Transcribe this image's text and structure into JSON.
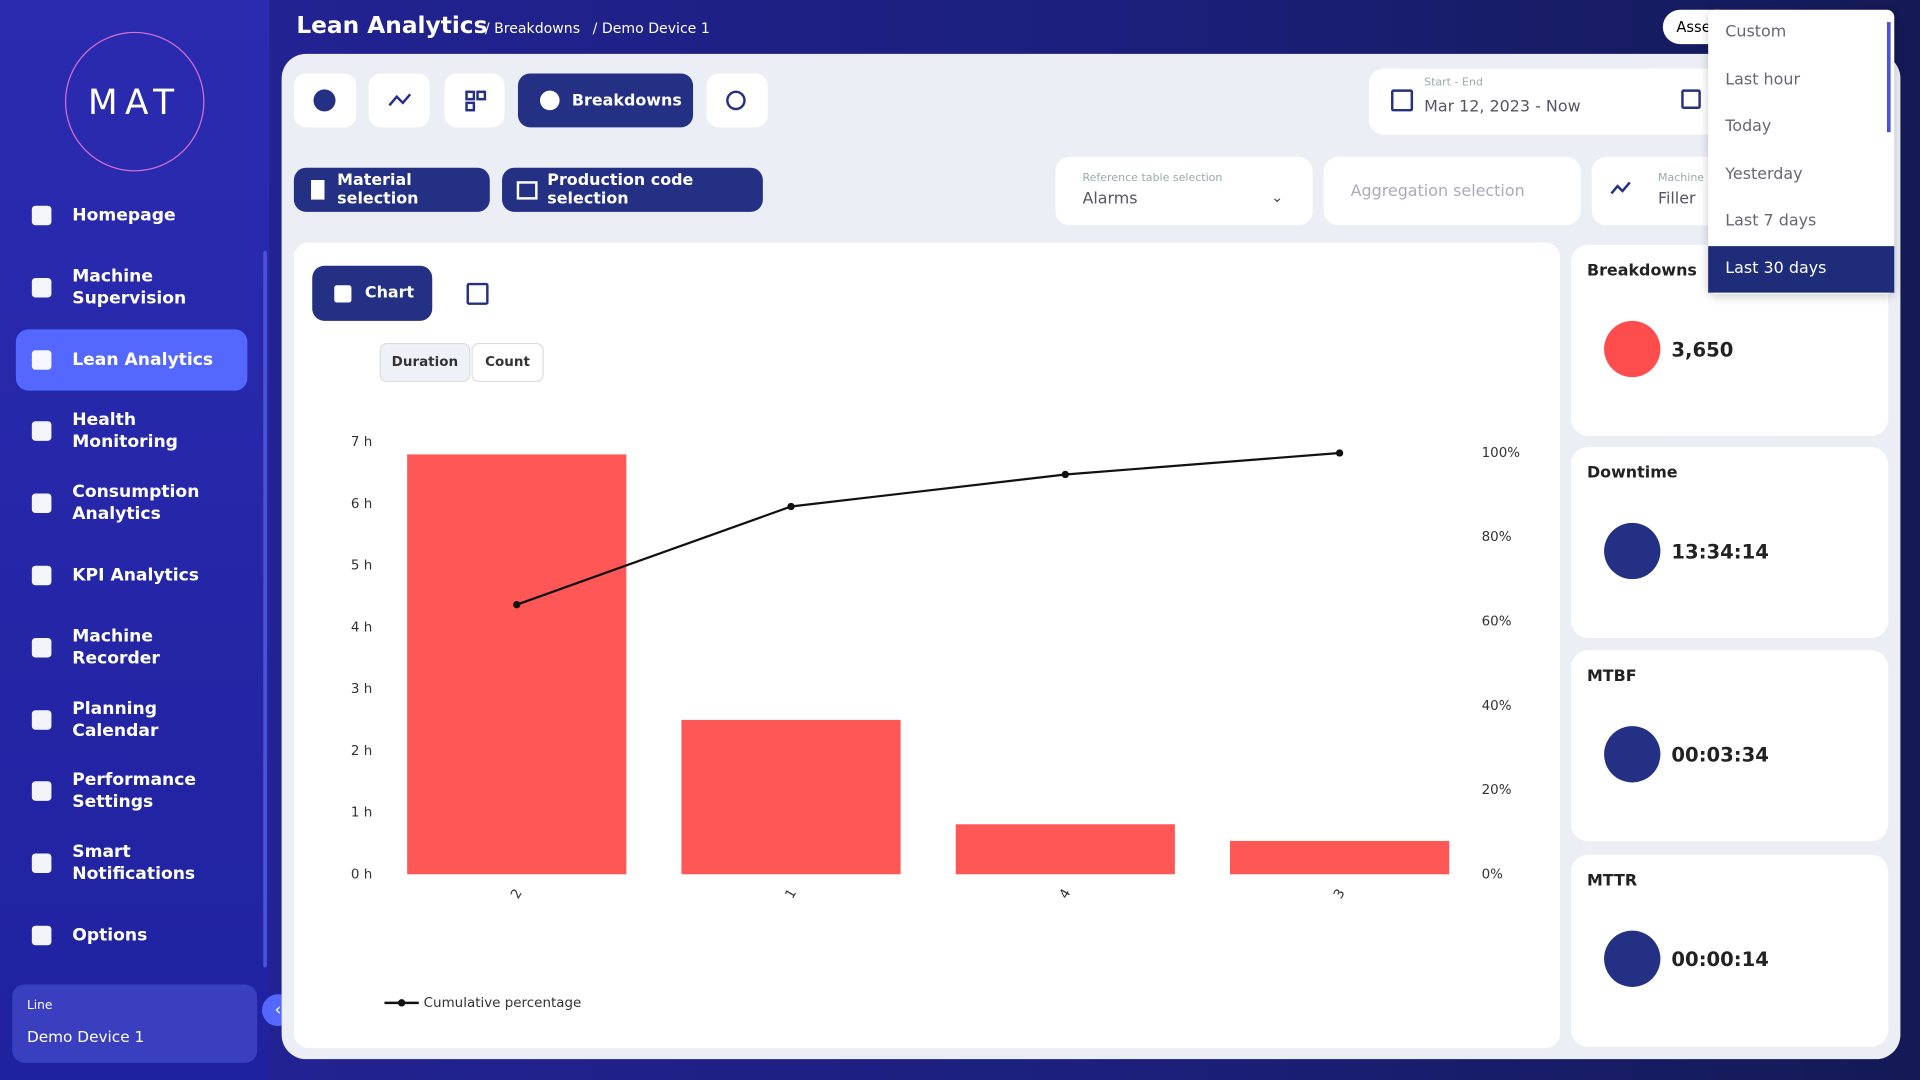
{
  "sidebar": {
    "logo": "MAT",
    "menu": [
      "Homepage",
      "Machine Supervision",
      "Lean Analytics",
      "Health Monitoring",
      "Consumption Analytics",
      "KPI Analytics",
      "Machine Recorder",
      "Planning Calendar",
      "Performance Settings",
      "Smart Notifications",
      "Options"
    ],
    "line_label": "Line",
    "line_value": "Demo Device 1"
  },
  "header": {
    "title": "Lean Analytics",
    "crumbs": [
      "/ Breakdowns",
      "/ Demo Device 1"
    ],
    "asset": "Asse"
  },
  "toolbar": {
    "tab": "Breakdowns",
    "material": "Material selection",
    "production": "Production code selection",
    "date_label": "Start - End",
    "date_value": "Mar 12, 2023 - Now",
    "ref_label": "Reference table selection",
    "ref_value": "Alarms",
    "aggregation": "Aggregation selection",
    "machine_label": "Machine",
    "machine_value": "Filler"
  },
  "view_tab": "Chart",
  "toggle": [
    "Duration",
    "Count"
  ],
  "chart_data": {
    "type": "pareto",
    "categories": [
      "2",
      "1",
      "4",
      "3"
    ],
    "series": [
      {
        "type": "bar",
        "color": "#ff5656",
        "values": [
          6.8,
          2.5,
          0.81,
          0.54
        ]
      },
      {
        "type": "line",
        "name": "Cumulative percentage",
        "color": "#111111",
        "axis": "y2",
        "values": [
          64,
          87.3,
          94.9,
          100
        ]
      }
    ],
    "ylim": [
      0,
      7
    ],
    "yticks": [
      {
        "value": 0,
        "label": "0 h"
      },
      {
        "value": 1,
        "label": "1 h"
      },
      {
        "value": 2,
        "label": "2 h"
      },
      {
        "value": 3,
        "label": "3 h"
      },
      {
        "value": 4,
        "label": "4 h"
      },
      {
        "value": 5,
        "label": "5 h"
      },
      {
        "value": 6,
        "label": "6 h"
      },
      {
        "value": 7,
        "label": "7 h"
      }
    ],
    "y2lim": [
      0,
      102.6
    ],
    "y2ticks": [
      {
        "value": 0,
        "label": "0%"
      },
      {
        "value": 20,
        "label": "20%"
      },
      {
        "value": 40,
        "label": "40%"
      },
      {
        "value": 60,
        "label": "60%"
      },
      {
        "value": 80,
        "label": "80%"
      },
      {
        "value": 100,
        "label": "100%"
      }
    ],
    "grid": false
  },
  "kpis": [
    {
      "title": "Breakdowns",
      "value": "3,650"
    },
    {
      "title": "Downtime",
      "value": "13:34:14"
    },
    {
      "title": "MTBF",
      "value": "00:03:34"
    },
    {
      "title": "MTTR",
      "value": "00:00:14"
    }
  ],
  "dropdown": [
    "Custom",
    "Last hour",
    "Today",
    "Yesterday",
    "Last 7 days",
    "Last 30 days"
  ]
}
